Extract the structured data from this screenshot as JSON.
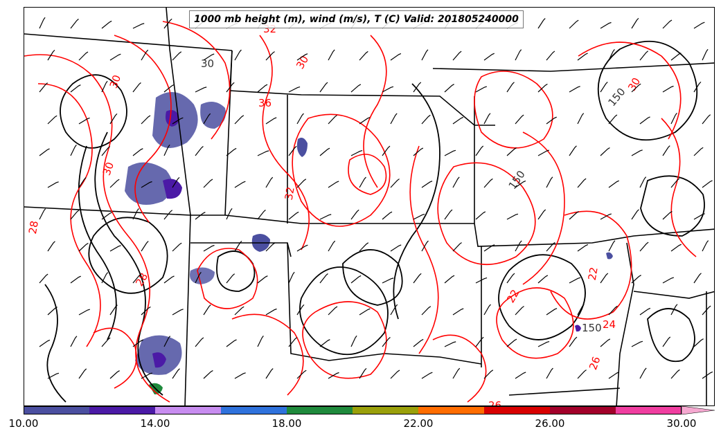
{
  "title": "1000 mb height (m), wind (m/s), T (C) Valid: 201805240000",
  "colorbar": {
    "colors": [
      "#4b4fa0",
      "#4b1aa6",
      "#c88df0",
      "#2f72dc",
      "#1f8a3c",
      "#9aa00a",
      "#ff6d00",
      "#d80000",
      "#a2002a",
      "#f03ea0"
    ],
    "extend_color": "#f5a8d0",
    "tick_labels": [
      "10.00",
      "14.00",
      "18.00",
      "22.00",
      "26.00",
      "30.00"
    ]
  },
  "contour_labels": {
    "height": [
      "30",
      "150",
      "150",
      "150"
    ],
    "temperature": [
      "32",
      "30",
      "30",
      "30",
      "36",
      "30",
      "32",
      "28",
      "28",
      "22",
      "22",
      "24",
      "26",
      "26"
    ]
  },
  "colors": {
    "temperature_contour": "#ff0000",
    "height_contour": "#000000",
    "state_borders": "#000000"
  }
}
